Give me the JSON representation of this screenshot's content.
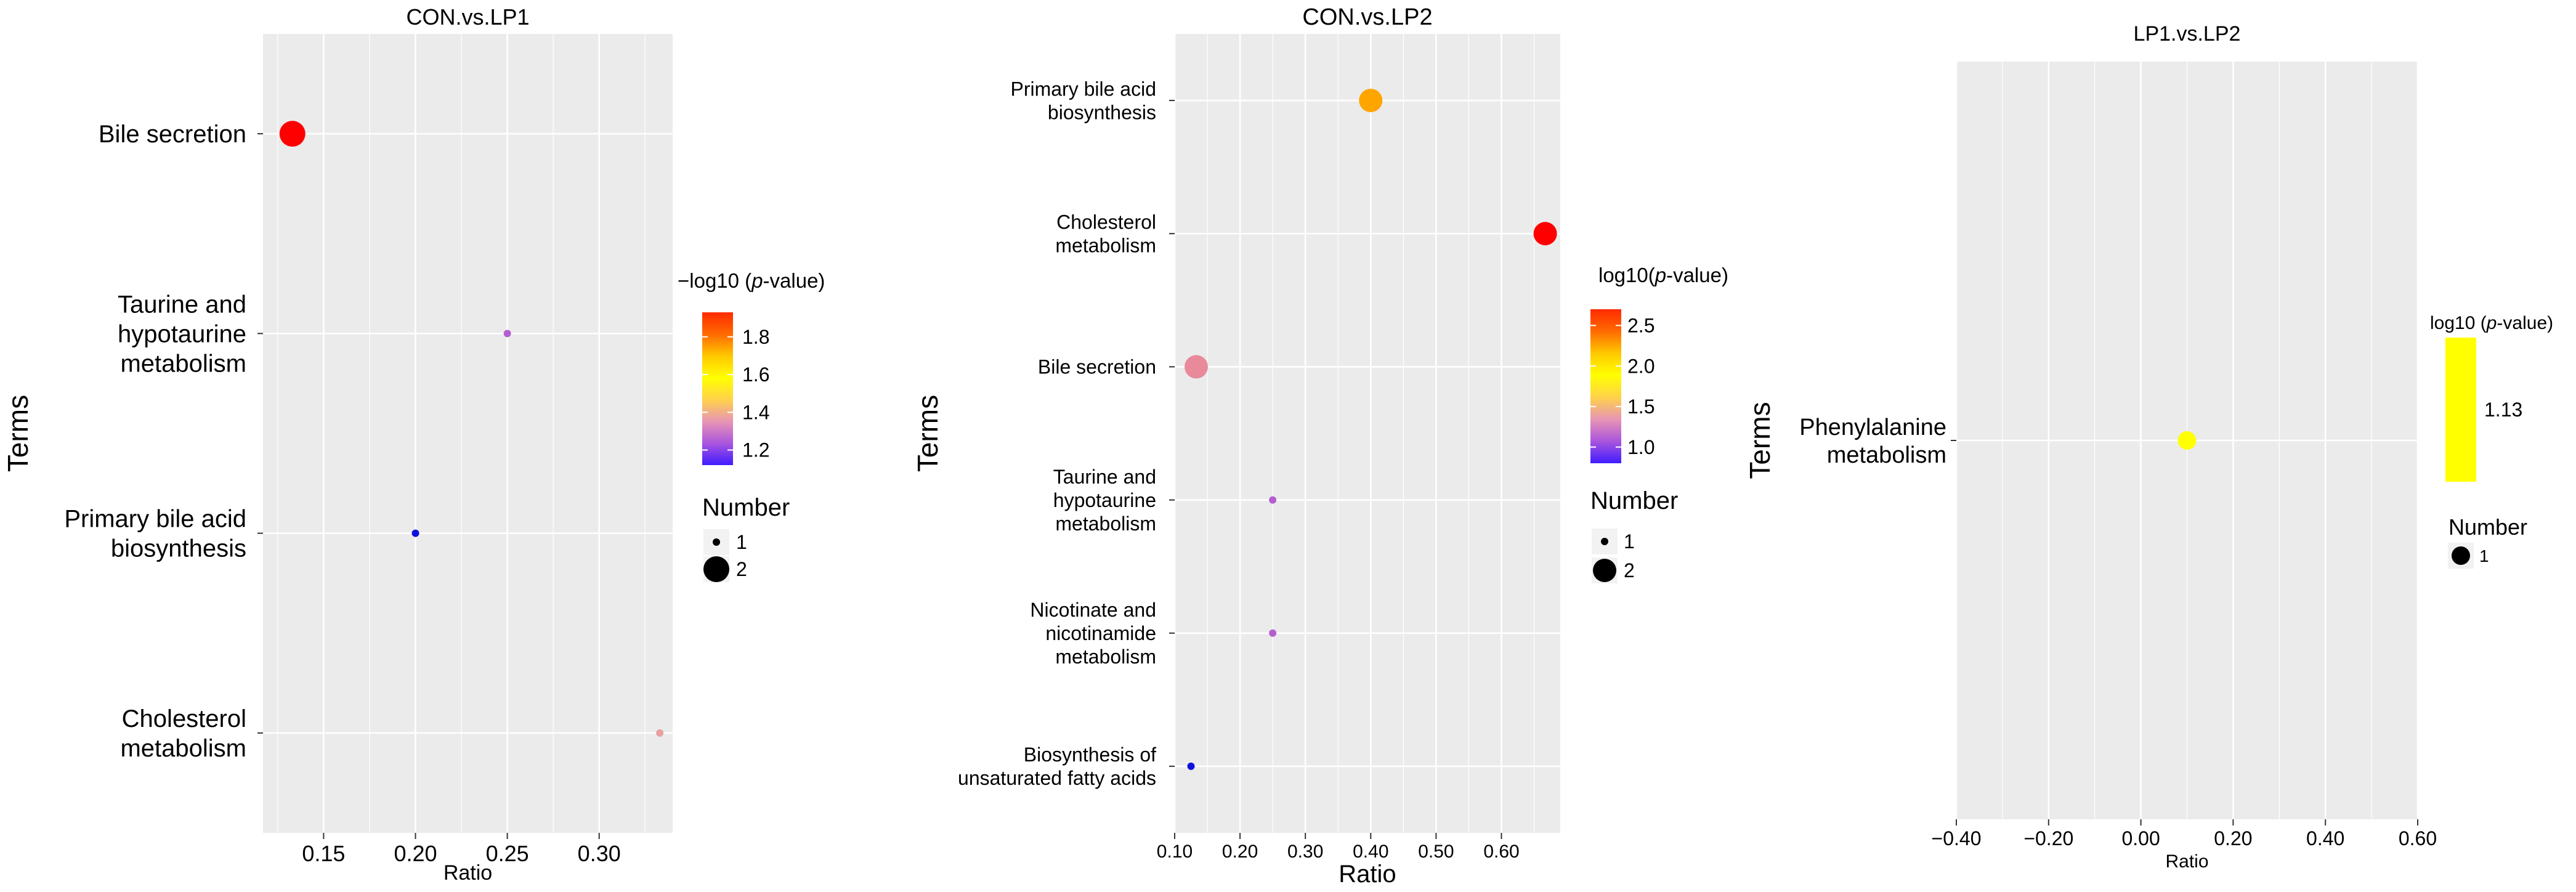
{
  "chart_data": [
    {
      "type": "scatter",
      "title": "CON.vs.LP1",
      "xlabel": "Ratio",
      "ylabel": "Terms",
      "xlim": [
        0.117,
        0.34
      ],
      "xticks": [
        0.15,
        0.2,
        0.25,
        0.3
      ],
      "xtick_labels": [
        "0.15",
        "0.20",
        "0.25",
        "0.30"
      ],
      "terms": [
        {
          "label": [
            "Bile secretion"
          ],
          "ratio": 0.133,
          "number": 2,
          "color": "#ff0000"
        },
        {
          "label": [
            "Taurine and",
            "hypotaurine",
            "metabolism"
          ],
          "ratio": 0.25,
          "number": 1,
          "color": "#b45fd0"
        },
        {
          "label": [
            "Primary bile acid",
            "biosynthesis"
          ],
          "ratio": 0.2,
          "number": 1,
          "color": "#1010dd"
        },
        {
          "label": [
            "Cholesterol",
            "metabolism"
          ],
          "ratio": 0.333,
          "number": 1,
          "color": "#e8a0a0"
        }
      ],
      "colorbar": {
        "title_prefix": "−log10 (",
        "title_italic": "p",
        "title_suffix": "-value)",
        "ticks": [
          1.2,
          1.4,
          1.6,
          1.8
        ],
        "tick_labels": [
          "1.2",
          "1.4",
          "1.6",
          "1.8"
        ],
        "range": [
          1.12,
          1.93
        ],
        "colors": [
          "#3f1cff",
          "#aa55dd",
          "#e895b5",
          "#ffd24a",
          "#ffff00",
          "#ffc800",
          "#ff6a00",
          "#ff2a00"
        ]
      },
      "size_legend": {
        "title": "Number",
        "values": [
          1,
          2
        ],
        "labels": [
          "1",
          "2"
        ]
      }
    },
    {
      "type": "scatter",
      "title": "CON.vs.LP2",
      "xlabel": "Ratio",
      "ylabel": "Terms",
      "xlim": [
        0.1,
        0.69
      ],
      "xticks": [
        0.1,
        0.2,
        0.3,
        0.4,
        0.5,
        0.6
      ],
      "xtick_labels": [
        "0.10",
        "0.20",
        "0.30",
        "0.40",
        "0.50",
        "0.60"
      ],
      "terms": [
        {
          "label": [
            "Primary bile acid",
            "biosynthesis"
          ],
          "ratio": 0.4,
          "number": 2,
          "color": "#ffa500"
        },
        {
          "label": [
            "Cholesterol",
            "metabolism"
          ],
          "ratio": 0.667,
          "number": 2,
          "color": "#ff0000"
        },
        {
          "label": [
            "Bile secretion"
          ],
          "ratio": 0.133,
          "number": 2,
          "color": "#e88a9a"
        },
        {
          "label": [
            "Taurine and",
            "hypotaurine",
            "metabolism"
          ],
          "ratio": 0.25,
          "number": 1,
          "color": "#b45fd0"
        },
        {
          "label": [
            "Nicotinate and",
            "nicotinamide",
            "metabolism"
          ],
          "ratio": 0.25,
          "number": 1,
          "color": "#b45fd0"
        },
        {
          "label": [
            "Biosynthesis of",
            "unsaturated fatty acids"
          ],
          "ratio": 0.125,
          "number": 1,
          "color": "#1010dd"
        }
      ],
      "colorbar": {
        "title_prefix": "log10(",
        "title_italic": "p",
        "title_suffix": "-value)",
        "ticks": [
          1.0,
          1.5,
          2.0,
          2.5
        ],
        "tick_labels": [
          "1.0",
          "1.5",
          "2.0",
          "2.5"
        ],
        "range": [
          0.8,
          2.7
        ],
        "colors": [
          "#3f1cff",
          "#aa55dd",
          "#e895b5",
          "#ffd24a",
          "#ffff00",
          "#ffc800",
          "#ff6a00",
          "#ff2a00"
        ]
      },
      "size_legend": {
        "title": "Number",
        "values": [
          1,
          2
        ],
        "labels": [
          "1",
          "2"
        ]
      }
    },
    {
      "type": "scatter",
      "title": "LP1.vs.LP2",
      "xlabel": "Ratio",
      "ylabel": "Terms",
      "xlim": [
        -0.4,
        0.6
      ],
      "xticks": [
        -0.4,
        -0.2,
        0.0,
        0.2,
        0.4,
        0.6
      ],
      "xtick_labels": [
        "−0.40",
        "−0.20",
        "0.00",
        "0.20",
        "0.40",
        "0.60"
      ],
      "terms": [
        {
          "label": [
            "Phenylalanine",
            "metabolism"
          ],
          "ratio": 0.1,
          "number": 1,
          "color": "#ffff00"
        }
      ],
      "colorbar": {
        "title_prefix": "log10 (",
        "title_italic": "p",
        "title_suffix": "-value)",
        "ticks": [
          1.13
        ],
        "tick_labels": [
          "1.13"
        ],
        "range": [
          1.0,
          1.26
        ],
        "colors": [
          "#ffff00",
          "#ffff00"
        ]
      },
      "size_legend": {
        "title": "Number",
        "values": [
          1
        ],
        "labels": [
          "1"
        ]
      }
    }
  ]
}
